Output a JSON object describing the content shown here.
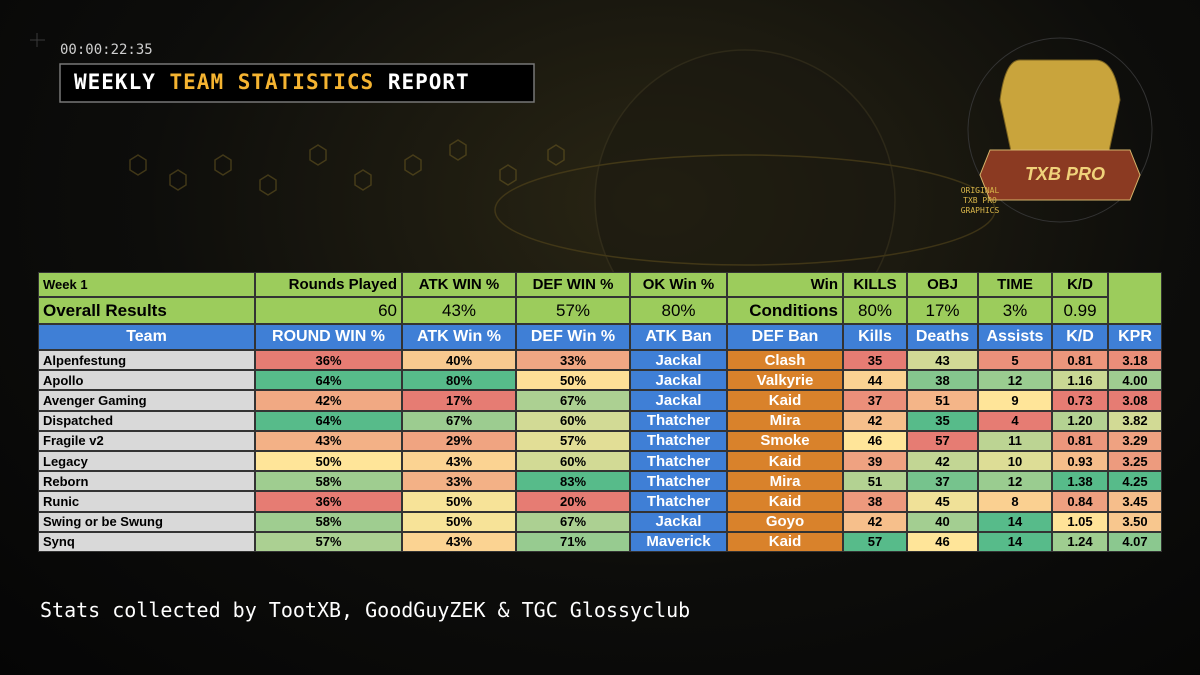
{
  "header": {
    "timestamp": "00:00:22:35",
    "title": {
      "part1": "WEEKLY",
      "part2": "TEAM STATISTICS",
      "part3": "REPORT"
    }
  },
  "logo": {
    "badge": "TXB PRO",
    "caption": [
      "ORIGINAL",
      "TXB PRO",
      "GRAPHICS"
    ]
  },
  "summary": {
    "rows": [
      [
        "Week 1",
        "Rounds Played",
        "ATK WIN %",
        "DEF WIN %",
        "OK Win %",
        "Win",
        "KILLS",
        "OBJ",
        "TIME",
        "K/D"
      ],
      [
        "Overall Results",
        "60",
        "43%",
        "57%",
        "80%",
        "Conditions",
        "80%",
        "17%",
        "3%",
        "0.99"
      ]
    ]
  },
  "table": {
    "columns": [
      "Team",
      "ROUND WIN %",
      "ATK Win %",
      "DEF Win %",
      "ATK Ban",
      "DEF Ban",
      "Kills",
      "Deaths",
      "Assists",
      "K/D",
      "KPR"
    ],
    "rows": [
      [
        "Alpenfestung",
        "36%",
        "40%",
        "33%",
        "Jackal",
        "Clash",
        "35",
        "43",
        "5",
        "0.81",
        "3.18"
      ],
      [
        "Apollo",
        "64%",
        "80%",
        "50%",
        "Jackal",
        "Valkyrie",
        "44",
        "38",
        "12",
        "1.16",
        "4.00"
      ],
      [
        "Avenger Gaming",
        "42%",
        "17%",
        "67%",
        "Jackal",
        "Kaid",
        "37",
        "51",
        "9",
        "0.73",
        "3.08"
      ],
      [
        "Dispatched",
        "64%",
        "67%",
        "60%",
        "Thatcher",
        "Mira",
        "42",
        "35",
        "4",
        "1.20",
        "3.82"
      ],
      [
        "Fragile v2",
        "43%",
        "29%",
        "57%",
        "Thatcher",
        "Smoke",
        "46",
        "57",
        "11",
        "0.81",
        "3.29"
      ],
      [
        "Legacy",
        "50%",
        "43%",
        "60%",
        "Thatcher",
        "Kaid",
        "39",
        "42",
        "10",
        "0.93",
        "3.25"
      ],
      [
        "Reborn",
        "58%",
        "33%",
        "83%",
        "Thatcher",
        "Mira",
        "51",
        "37",
        "12",
        "1.38",
        "4.25"
      ],
      [
        "Runic",
        "36%",
        "50%",
        "20%",
        "Thatcher",
        "Kaid",
        "38",
        "45",
        "8",
        "0.84",
        "3.45"
      ],
      [
        "Swing or be Swung",
        "58%",
        "50%",
        "67%",
        "Jackal",
        "Goyo",
        "42",
        "40",
        "14",
        "1.05",
        "3.50"
      ],
      [
        "Synq",
        "57%",
        "43%",
        "71%",
        "Maverick",
        "Kaid",
        "57",
        "46",
        "14",
        "1.24",
        "4.07"
      ]
    ]
  },
  "footer": "Stats collected by TootXB, GoodGuyZEK & TGC Glossyclub"
}
